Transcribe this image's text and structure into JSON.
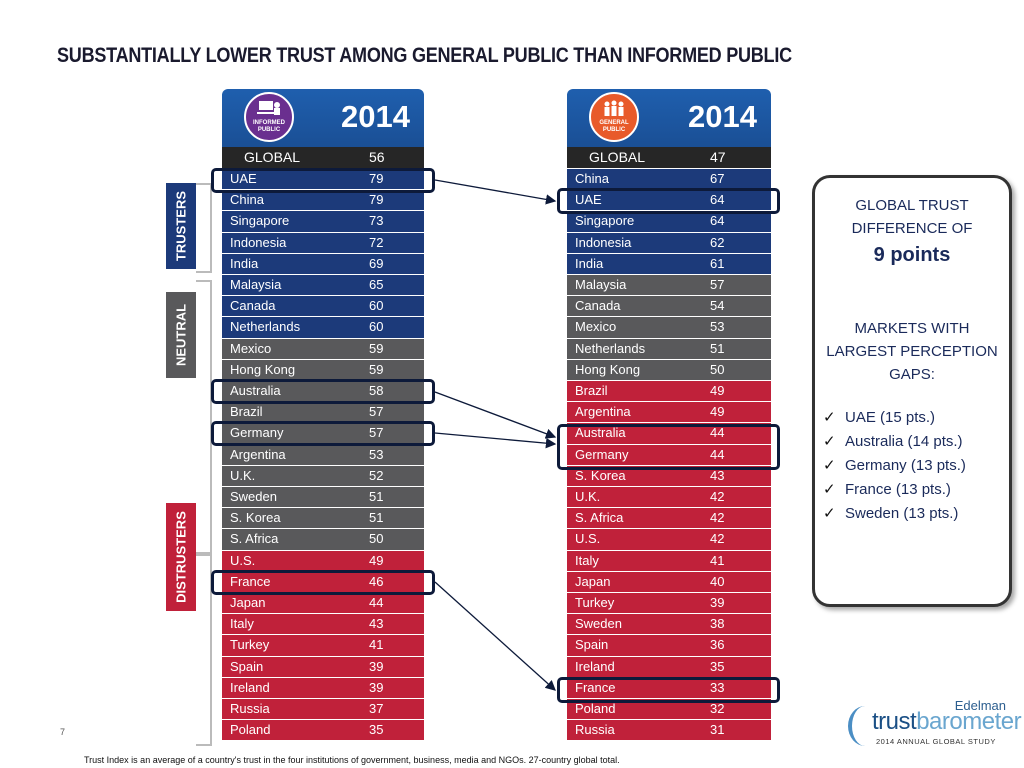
{
  "title": "SUBSTANTIALLY LOWER TRUST AMONG GENERAL PUBLIC THAN INFORMED PUBLIC",
  "informed": {
    "year": "2014",
    "badge": [
      "INFORMED",
      "PUBLIC"
    ],
    "global": {
      "label": "GLOBAL",
      "value": "56"
    },
    "rows": [
      {
        "c": "UAE",
        "v": "79",
        "k": "t"
      },
      {
        "c": "China",
        "v": "79",
        "k": "t"
      },
      {
        "c": "Singapore",
        "v": "73",
        "k": "t"
      },
      {
        "c": "Indonesia",
        "v": "72",
        "k": "t"
      },
      {
        "c": "India",
        "v": "69",
        "k": "t"
      },
      {
        "c": "Malaysia",
        "v": "65",
        "k": "t"
      },
      {
        "c": "Canada",
        "v": "60",
        "k": "t"
      },
      {
        "c": "Netherlands",
        "v": "60",
        "k": "t"
      },
      {
        "c": "Mexico",
        "v": "59",
        "k": "n"
      },
      {
        "c": "Hong Kong",
        "v": "59",
        "k": "n"
      },
      {
        "c": "Australia",
        "v": "58",
        "k": "n"
      },
      {
        "c": "Brazil",
        "v": "57",
        "k": "n"
      },
      {
        "c": "Germany",
        "v": "57",
        "k": "n"
      },
      {
        "c": "Argentina",
        "v": "53",
        "k": "n"
      },
      {
        "c": "U.K.",
        "v": "52",
        "k": "n"
      },
      {
        "c": "Sweden",
        "v": "51",
        "k": "n"
      },
      {
        "c": "S. Korea",
        "v": "51",
        "k": "n"
      },
      {
        "c": "S. Africa",
        "v": "50",
        "k": "n"
      },
      {
        "c": "U.S.",
        "v": "49",
        "k": "d"
      },
      {
        "c": "France",
        "v": "46",
        "k": "d"
      },
      {
        "c": "Japan",
        "v": "44",
        "k": "d"
      },
      {
        "c": "Italy",
        "v": "43",
        "k": "d"
      },
      {
        "c": "Turkey",
        "v": "41",
        "k": "d"
      },
      {
        "c": "Spain",
        "v": "39",
        "k": "d"
      },
      {
        "c": "Ireland",
        "v": "39",
        "k": "d"
      },
      {
        "c": "Russia",
        "v": "37",
        "k": "d"
      },
      {
        "c": "Poland",
        "v": "35",
        "k": "d"
      }
    ]
  },
  "general": {
    "year": "2014",
    "badge": [
      "GENERAL",
      "PUBLIC"
    ],
    "global": {
      "label": "GLOBAL",
      "value": "47"
    },
    "rows": [
      {
        "c": "China",
        "v": "67",
        "k": "t"
      },
      {
        "c": "UAE",
        "v": "64",
        "k": "t"
      },
      {
        "c": "Singapore",
        "v": "64",
        "k": "t"
      },
      {
        "c": "Indonesia",
        "v": "62",
        "k": "t"
      },
      {
        "c": "India",
        "v": "61",
        "k": "t"
      },
      {
        "c": "Malaysia",
        "v": "57",
        "k": "n"
      },
      {
        "c": "Canada",
        "v": "54",
        "k": "n"
      },
      {
        "c": "Mexico",
        "v": "53",
        "k": "n"
      },
      {
        "c": "Netherlands",
        "v": "51",
        "k": "n"
      },
      {
        "c": "Hong Kong",
        "v": "50",
        "k": "n"
      },
      {
        "c": "Brazil",
        "v": "49",
        "k": "d"
      },
      {
        "c": "Argentina",
        "v": "49",
        "k": "d"
      },
      {
        "c": "Australia",
        "v": "44",
        "k": "d"
      },
      {
        "c": "Germany",
        "v": "44",
        "k": "d"
      },
      {
        "c": "S. Korea",
        "v": "43",
        "k": "d"
      },
      {
        "c": "U.K.",
        "v": "42",
        "k": "d"
      },
      {
        "c": "S. Africa",
        "v": "42",
        "k": "d"
      },
      {
        "c": "U.S.",
        "v": "42",
        "k": "d"
      },
      {
        "c": "Italy",
        "v": "41",
        "k": "d"
      },
      {
        "c": "Japan",
        "v": "40",
        "k": "d"
      },
      {
        "c": "Turkey",
        "v": "39",
        "k": "d"
      },
      {
        "c": "Sweden",
        "v": "38",
        "k": "d"
      },
      {
        "c": "Spain",
        "v": "36",
        "k": "d"
      },
      {
        "c": "Ireland",
        "v": "35",
        "k": "d"
      },
      {
        "c": "France",
        "v": "33",
        "k": "d"
      },
      {
        "c": "Poland",
        "v": "32",
        "k": "d"
      },
      {
        "c": "Russia",
        "v": "31",
        "k": "d"
      }
    ]
  },
  "bands": {
    "trusters": "TRUSTERS",
    "neutral": "NEUTRAL",
    "distrusters": "DISTRUSTERS"
  },
  "callout": {
    "line1": "GLOBAL TRUST",
    "line2": "DIFFERENCE OF",
    "big": "9 points",
    "line3": "MARKETS WITH",
    "line4": "LARGEST PERCEPTION",
    "line5": "GAPS:",
    "check": "✓",
    "items": [
      "UAE (15 pts.)",
      "Australia (14 pts.)",
      "Germany (13 pts.)",
      "France (13 pts.)",
      "Sweden (13 pts.)"
    ]
  },
  "colors": {
    "trusters": "#1c3a7a",
    "neutral": "#59595b",
    "distrusters": "#c0213a",
    "global": "#262626"
  },
  "footnote": "Trust Index is an average of a country's trust in the four institutions of government, business, media and NGOs. 27-country global total.",
  "page_number": "7",
  "logo": {
    "brand": "Edelman",
    "word1": "trust",
    "word2": "barometer",
    "sub": "2014 ANNUAL GLOBAL STUDY"
  }
}
